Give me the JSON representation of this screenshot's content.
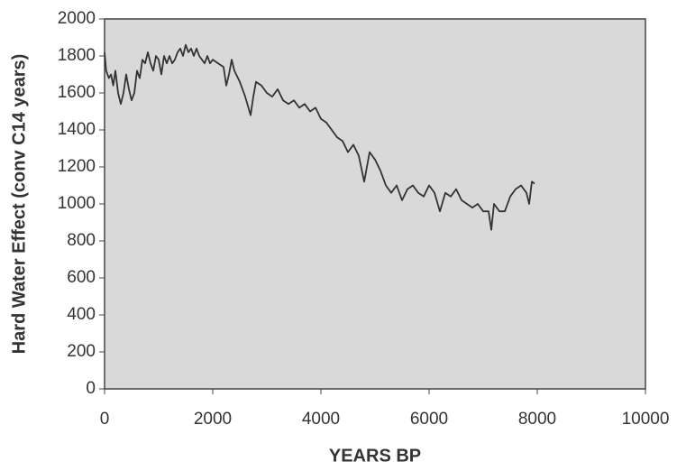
{
  "chart_data": {
    "type": "line",
    "xlabel": "YEARS BP",
    "ylabel": "Hard Water Effect (conv C14 years)",
    "xlim": [
      0,
      10000
    ],
    "xticks": [
      0,
      2000,
      4000,
      6000,
      8000,
      10000
    ],
    "ylim": [
      0,
      2000
    ],
    "yticks": [
      0,
      200,
      400,
      600,
      800,
      1000,
      1200,
      1400,
      1600,
      1800,
      2000
    ],
    "series": [
      {
        "color": "#333333",
        "x": [
          0,
          30,
          80,
          120,
          160,
          200,
          250,
          300,
          350,
          400,
          450,
          500,
          550,
          600,
          650,
          700,
          750,
          800,
          850,
          900,
          950,
          1000,
          1050,
          1100,
          1150,
          1200,
          1250,
          1300,
          1350,
          1400,
          1450,
          1500,
          1550,
          1600,
          1650,
          1700,
          1750,
          1800,
          1850,
          1900,
          1950,
          2000,
          2100,
          2200,
          2250,
          2300,
          2350,
          2400,
          2500,
          2600,
          2700,
          2750,
          2800,
          2900,
          3000,
          3100,
          3200,
          3300,
          3400,
          3500,
          3600,
          3700,
          3800,
          3900,
          4000,
          4100,
          4200,
          4300,
          4400,
          4500,
          4600,
          4700,
          4800,
          4850,
          4900,
          5000,
          5100,
          5200,
          5300,
          5400,
          5500,
          5600,
          5700,
          5800,
          5900,
          6000,
          6100,
          6200,
          6300,
          6400,
          6500,
          6600,
          6700,
          6800,
          6900,
          7000,
          7100,
          7150,
          7200,
          7300,
          7400,
          7500,
          7600,
          7700,
          7800,
          7850,
          7900,
          7950
        ],
        "values": [
          1820,
          1720,
          1680,
          1700,
          1640,
          1720,
          1600,
          1540,
          1600,
          1700,
          1620,
          1560,
          1600,
          1720,
          1680,
          1780,
          1760,
          1820,
          1760,
          1720,
          1800,
          1780,
          1700,
          1800,
          1760,
          1800,
          1760,
          1780,
          1820,
          1840,
          1800,
          1860,
          1820,
          1840,
          1800,
          1840,
          1800,
          1780,
          1760,
          1800,
          1760,
          1780,
          1760,
          1740,
          1640,
          1700,
          1780,
          1720,
          1660,
          1580,
          1480,
          1580,
          1660,
          1640,
          1600,
          1580,
          1620,
          1560,
          1540,
          1560,
          1520,
          1540,
          1500,
          1520,
          1460,
          1440,
          1400,
          1360,
          1340,
          1280,
          1320,
          1260,
          1120,
          1200,
          1280,
          1240,
          1180,
          1100,
          1060,
          1100,
          1020,
          1080,
          1100,
          1060,
          1040,
          1100,
          1060,
          960,
          1060,
          1040,
          1080,
          1020,
          1000,
          980,
          1000,
          960,
          960,
          860,
          1000,
          960,
          960,
          1040,
          1080,
          1100,
          1060,
          1000,
          1120,
          1110
        ]
      }
    ]
  }
}
